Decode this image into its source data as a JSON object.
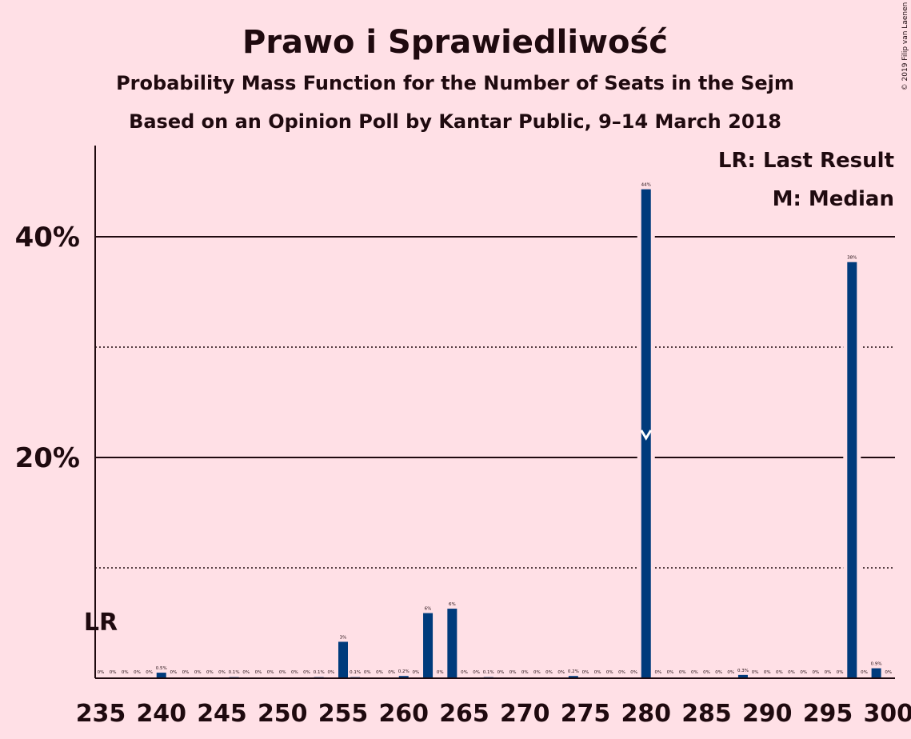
{
  "chart_data": {
    "type": "bar",
    "title": "Prawo i Sprawiedliwość",
    "subtitle": "Probability Mass Function for the Number of Seats in the Sejm",
    "subtitle2": "Based on an Opinion Poll by Kantar Public, 9–14 March 2018",
    "copyright": "© 2019 Filip van Laenen",
    "legend": {
      "placement": "top-right",
      "entries": [
        "LR: Last Result",
        "M: Median"
      ]
    },
    "last_result": {
      "seats": 235,
      "label": "LR"
    },
    "median": {
      "seats": 280,
      "marker": "M"
    },
    "x": [
      235,
      236,
      237,
      238,
      239,
      240,
      241,
      242,
      243,
      244,
      245,
      246,
      247,
      248,
      249,
      250,
      251,
      252,
      253,
      254,
      255,
      256,
      257,
      258,
      259,
      260,
      261,
      262,
      263,
      264,
      265,
      266,
      267,
      268,
      269,
      270,
      271,
      272,
      273,
      274,
      275,
      276,
      277,
      278,
      279,
      280,
      281,
      282,
      283,
      284,
      285,
      286,
      287,
      288,
      289,
      290,
      291,
      292,
      293,
      294,
      295,
      296,
      297,
      298,
      299,
      300
    ],
    "values": [
      0,
      0,
      0,
      0,
      0,
      0.5,
      0,
      0,
      0,
      0,
      0,
      0.1,
      0,
      0,
      0,
      0,
      0,
      0,
      0.1,
      0,
      3.3,
      0.1,
      0,
      0,
      0,
      0.2,
      0,
      5.9,
      0,
      6.3,
      0,
      0,
      0.1,
      0,
      0,
      0,
      0,
      0,
      0,
      0.2,
      0,
      0,
      0,
      0,
      0,
      44.3,
      0,
      0,
      0,
      0,
      0,
      0,
      0,
      0.3,
      0,
      0,
      0,
      0,
      0,
      0,
      0,
      0,
      37.7,
      0,
      0.9,
      0
    ],
    "data_labels": [
      "0%",
      "0%",
      "0%",
      "0%",
      "0%",
      "0.5%",
      "0%",
      "0%",
      "0%",
      "0%",
      "0%",
      "0.1%",
      "0%",
      "0%",
      "0%",
      "0%",
      "0%",
      "0%",
      "0.1%",
      "0%",
      "3%",
      "0.1%",
      "0%",
      "0%",
      "0%",
      "0.2%",
      "0%",
      "6%",
      "0%",
      "6%",
      "0%",
      "0%",
      "0.1%",
      "0%",
      "0%",
      "0%",
      "0%",
      "0%",
      "0%",
      "0.2%",
      "0%",
      "0%",
      "0%",
      "0%",
      "0%",
      "44%",
      "0%",
      "0%",
      "0%",
      "0%",
      "0%",
      "0%",
      "0%",
      "0.3%",
      "0%",
      "0%",
      "0%",
      "0%",
      "0%",
      "0%",
      "0%",
      "0%",
      "38%",
      "0%",
      "0.9%",
      "0%"
    ],
    "xticks": [
      235,
      240,
      245,
      250,
      255,
      260,
      265,
      270,
      275,
      280,
      285,
      290,
      295,
      300
    ],
    "xtick_labels": [
      "235",
      "240",
      "245",
      "250",
      "255",
      "260",
      "265",
      "270",
      "275",
      "280",
      "285",
      "290",
      "295",
      "300"
    ],
    "yticks_major": [
      20,
      40
    ],
    "ytick_labels": [
      "20%",
      "40%"
    ],
    "yticks_minor": [
      10,
      30
    ],
    "xlim": [
      235,
      300
    ],
    "ylim": [
      0,
      48
    ],
    "grid": true,
    "bar_color": "#003b7c",
    "background_color": "#ffe0e6"
  }
}
